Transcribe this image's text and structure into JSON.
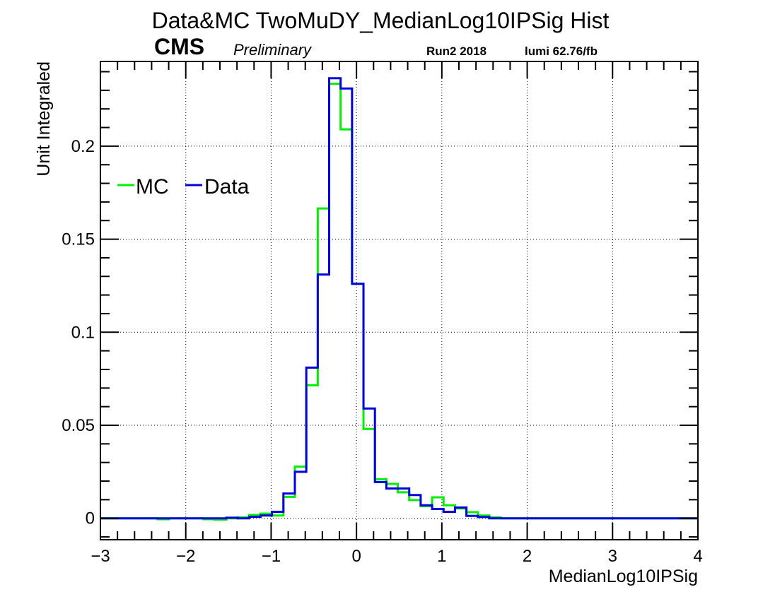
{
  "chart_data": {
    "type": "histogram",
    "title": "Data&MC TwoMuDY_MedianLog10IPSig Hist",
    "experiment": "CMS",
    "status": "Preliminary",
    "run": "Run2 2018",
    "lumi": "lumi 62.76/fb",
    "xlabel": "MedianLog10IPSig",
    "ylabel": "Unit Integraled",
    "xlim": [
      -3,
      4
    ],
    "ylim": [
      -0.0115,
      0.2455
    ],
    "grid": true,
    "legend_position": "upper-left",
    "x_ticks": [
      -3,
      -2,
      -1,
      0,
      1,
      2,
      3,
      4
    ],
    "x_tick_labels": [
      "−3",
      "−2",
      "−1",
      "0",
      "1",
      "2",
      "3",
      "4"
    ],
    "y_ticks": [
      0,
      0.05,
      0.1,
      0.15,
      0.2
    ],
    "y_tick_labels": [
      "0",
      "0.05",
      "0.1",
      "0.15",
      "0.2"
    ],
    "bin_edges": [
      -3,
      -2.866,
      -2.732,
      -2.598,
      -2.464,
      -2.33,
      -2.196,
      -2.062,
      -1.928,
      -1.794,
      -1.66,
      -1.526,
      -1.392,
      -1.258,
      -1.124,
      -0.99,
      -0.856,
      -0.722,
      -0.588,
      -0.454,
      -0.32,
      -0.186,
      -0.052,
      0.082,
      0.216,
      0.35,
      0.484,
      0.618,
      0.752,
      0.886,
      1.02,
      1.154,
      1.288,
      1.422,
      1.556,
      1.69,
      1.824,
      1.958,
      4
    ],
    "series": [
      {
        "name": "MC",
        "color": "#00ee00",
        "values": [
          0,
          0,
          0,
          0,
          0,
          -0.0005,
          0,
          0,
          0,
          -0.0005,
          -0.0007,
          0,
          0.0005,
          0.0018,
          0.0025,
          0.0015,
          0.0115,
          0.0278,
          0.0715,
          0.1665,
          0.2335,
          0.209,
          0.126,
          0.048,
          0.021,
          0.0185,
          0.014,
          0.0098,
          0.0065,
          0.0113,
          0.007,
          0.0053,
          0.0033,
          0.0015,
          0.0005,
          0,
          0,
          0
        ]
      },
      {
        "name": "Data",
        "color": "#0000dd",
        "values": [
          0,
          0,
          0,
          0,
          0,
          0,
          0,
          0,
          0,
          0,
          0,
          0.0003,
          0,
          0.0008,
          0.0015,
          0.0035,
          0.0133,
          0.025,
          0.081,
          0.131,
          0.2365,
          0.231,
          0.126,
          0.059,
          0.0195,
          0.016,
          0.016,
          0.0125,
          0.007,
          0.005,
          0.0035,
          0.0058,
          0.0013,
          0.0007,
          0,
          0,
          0,
          0
        ]
      }
    ]
  }
}
